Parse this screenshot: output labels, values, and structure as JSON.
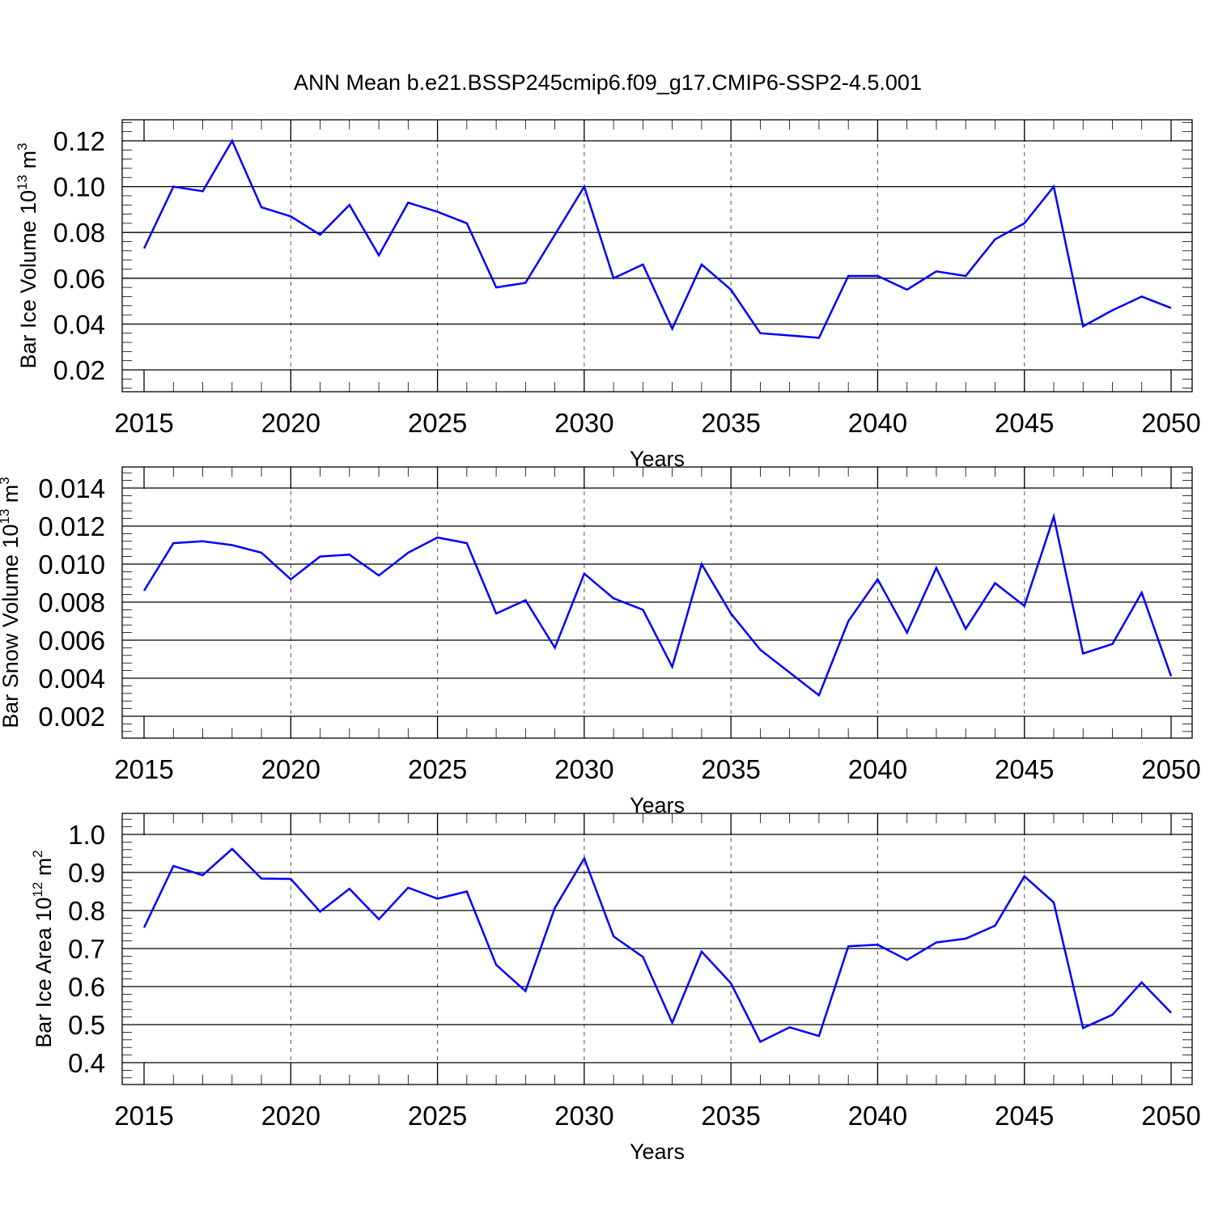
{
  "title": "ANN Mean b.e21.BSSP245cmip6.f09_g17.CMIP6-SSP2-4.5.001",
  "chart_data": [
    {
      "type": "line",
      "xlabel": "Years",
      "ylabel": {
        "text": "Bar Ice Volume 10",
        "exp": "13",
        "unit": " m",
        "unit_exp": "3"
      },
      "xlim": [
        2015,
        2050
      ],
      "ylim": [
        0.02,
        0.12
      ],
      "x_ticks": [
        2015,
        2020,
        2025,
        2030,
        2035,
        2040,
        2045,
        2050
      ],
      "y_ticks": [
        0.02,
        0.04,
        0.06,
        0.08,
        0.1,
        0.12
      ],
      "y_tick_labels": [
        "0.02",
        "0.04",
        "0.06",
        "0.08",
        "0.10",
        "0.12"
      ],
      "y_minor_step": 0.004,
      "grid": "dashed vertical at major x ticks",
      "color": "#0000ff",
      "x": [
        2015,
        2016,
        2017,
        2018,
        2019,
        2020,
        2021,
        2022,
        2023,
        2024,
        2025,
        2026,
        2027,
        2028,
        2029,
        2030,
        2031,
        2032,
        2033,
        2034,
        2035,
        2036,
        2037,
        2038,
        2039,
        2040,
        2041,
        2042,
        2043,
        2044,
        2045,
        2046,
        2047,
        2048,
        2049,
        2050
      ],
      "values": [
        0.073,
        0.1,
        0.098,
        0.12,
        0.091,
        0.087,
        0.079,
        0.092,
        0.07,
        0.093,
        0.089,
        0.084,
        0.056,
        0.058,
        0.079,
        0.1,
        0.06,
        0.066,
        0.038,
        0.066,
        0.055,
        0.036,
        0.035,
        0.034,
        0.061,
        0.061,
        0.055,
        0.063,
        0.061,
        0.077,
        0.084,
        0.1,
        0.039,
        0.046,
        0.052,
        0.047
      ]
    },
    {
      "type": "line",
      "xlabel": "Years",
      "ylabel": {
        "text": "Bar Snow Volume 10",
        "exp": "13",
        "unit": " m",
        "unit_exp": "3"
      },
      "xlim": [
        2015,
        2050
      ],
      "ylim": [
        0.002,
        0.014
      ],
      "x_ticks": [
        2015,
        2020,
        2025,
        2030,
        2035,
        2040,
        2045,
        2050
      ],
      "y_ticks": [
        0.002,
        0.004,
        0.006,
        0.008,
        0.01,
        0.012,
        0.014
      ],
      "y_tick_labels": [
        "0.002",
        "0.004",
        "0.006",
        "0.008",
        "0.010",
        "0.012",
        "0.014"
      ],
      "y_minor_step": 0.0004,
      "grid": "dashed vertical at major x ticks",
      "color": "#0000ff",
      "x": [
        2015,
        2016,
        2017,
        2018,
        2019,
        2020,
        2021,
        2022,
        2023,
        2024,
        2025,
        2026,
        2027,
        2028,
        2029,
        2030,
        2031,
        2032,
        2033,
        2034,
        2035,
        2036,
        2037,
        2038,
        2039,
        2040,
        2041,
        2042,
        2043,
        2044,
        2045,
        2046,
        2047,
        2048,
        2049,
        2050
      ],
      "values": [
        0.0086,
        0.0111,
        0.0112,
        0.011,
        0.0106,
        0.0092,
        0.0104,
        0.0105,
        0.0094,
        0.0106,
        0.0114,
        0.0111,
        0.0074,
        0.0081,
        0.0056,
        0.0095,
        0.0082,
        0.0076,
        0.0046,
        0.01,
        0.0074,
        0.0055,
        0.0043,
        0.0031,
        0.007,
        0.0092,
        0.0064,
        0.0098,
        0.0066,
        0.009,
        0.0078,
        0.0125,
        0.0053,
        0.0058,
        0.0085,
        0.0041
      ]
    },
    {
      "type": "line",
      "xlabel": "Years",
      "ylabel": {
        "text": "Bar Ice Area 10",
        "exp": "12",
        "unit": " m",
        "unit_exp": "2"
      },
      "xlim": [
        2015,
        2050
      ],
      "ylim": [
        0.4,
        1.0
      ],
      "x_ticks": [
        2015,
        2020,
        2025,
        2030,
        2035,
        2040,
        2045,
        2050
      ],
      "y_ticks": [
        0.4,
        0.5,
        0.6,
        0.7,
        0.8,
        0.9,
        1.0
      ],
      "y_tick_labels": [
        "0.4",
        "0.5",
        "0.6",
        "0.7",
        "0.8",
        "0.9",
        "1.0"
      ],
      "y_minor_step": 0.02,
      "grid": "dashed vertical at major x ticks",
      "color": "#0000ff",
      "x": [
        2015,
        2016,
        2017,
        2018,
        2019,
        2020,
        2021,
        2022,
        2023,
        2024,
        2025,
        2026,
        2027,
        2028,
        2029,
        2030,
        2031,
        2032,
        2033,
        2034,
        2035,
        2036,
        2037,
        2038,
        2039,
        2040,
        2041,
        2042,
        2043,
        2044,
        2045,
        2046,
        2047,
        2048,
        2049,
        2050
      ],
      "values": [
        0.755,
        0.917,
        0.893,
        0.962,
        0.884,
        0.883,
        0.797,
        0.857,
        0.777,
        0.86,
        0.831,
        0.85,
        0.657,
        0.588,
        0.807,
        0.937,
        0.732,
        0.678,
        0.505,
        0.692,
        0.609,
        0.455,
        0.493,
        0.47,
        0.706,
        0.71,
        0.67,
        0.716,
        0.726,
        0.76,
        0.89,
        0.821,
        0.491,
        0.526,
        0.611,
        0.531
      ]
    }
  ]
}
